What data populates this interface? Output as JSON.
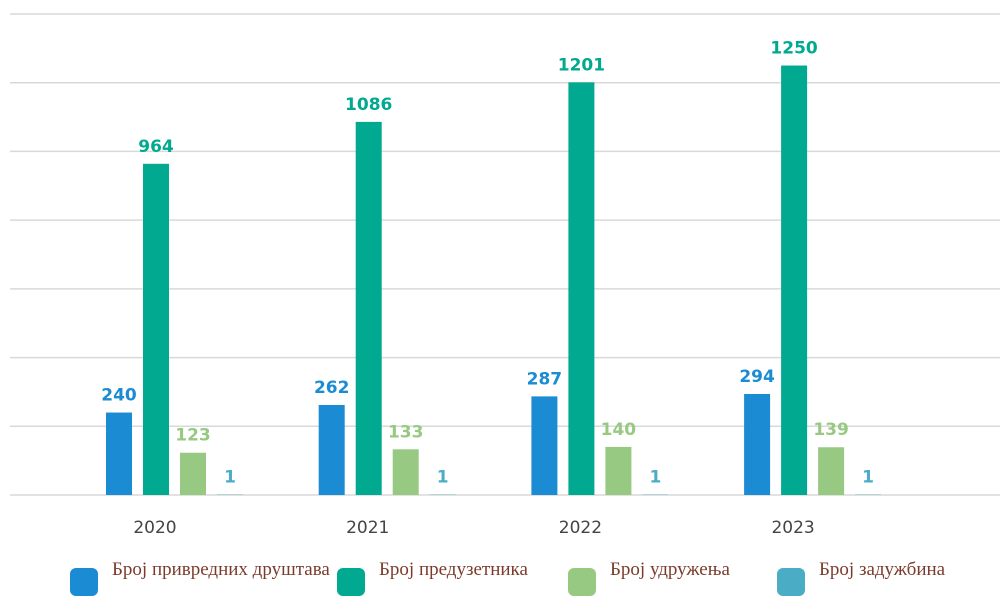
{
  "chart_data": {
    "type": "bar",
    "categories": [
      "2020",
      "2021",
      "2022",
      "2023"
    ],
    "series": [
      {
        "name": "Број привредних друштава",
        "color": "#1b8bd3",
        "values": [
          240,
          262,
          287,
          294
        ]
      },
      {
        "name": "Број предузетника",
        "color": "#00a98f",
        "values": [
          964,
          1086,
          1201,
          1250
        ]
      },
      {
        "name": "Број удружења",
        "color": "#97c983",
        "values": [
          123,
          133,
          140,
          139
        ]
      },
      {
        "name": "Број задужбина",
        "color": "#4bacc6",
        "values": [
          1,
          1,
          1,
          1
        ]
      }
    ],
    "ylim": [
      0,
      1400
    ],
    "yticks": [
      0,
      200,
      400,
      600,
      800,
      1000,
      1200,
      1400
    ],
    "grid": true,
    "legend": "bottom"
  }
}
